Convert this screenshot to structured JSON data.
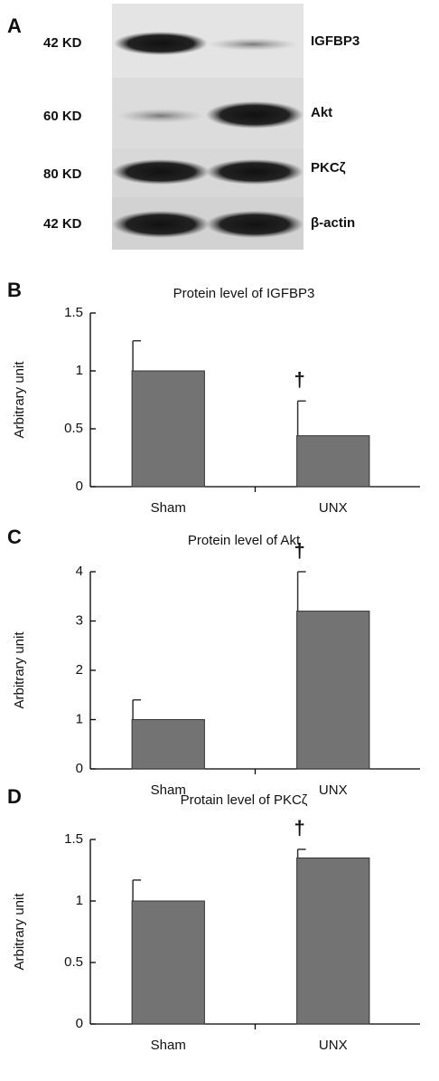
{
  "blot": {
    "panel_label": "A",
    "size_labels": [
      "42 KD",
      "60 KD",
      "80 KD",
      "42 KD"
    ],
    "protein_labels": [
      "IGFBP3",
      "Akt",
      "PKCζ",
      "β-actin"
    ]
  },
  "chart_data": [
    {
      "type": "bar",
      "panel_label": "B",
      "title": "Protein level of IGFBP3",
      "y_label": "Arbitrary unit",
      "categories": [
        "Sham",
        "UNX"
      ],
      "values": [
        1.0,
        0.44
      ],
      "errors": [
        0.26,
        0.3
      ],
      "annotations": [
        null,
        "†"
      ],
      "color": "#737373",
      "ylim": [
        0,
        1.5
      ],
      "yticks": [
        0,
        0.5,
        1,
        1.5
      ]
    },
    {
      "type": "bar",
      "panel_label": "C",
      "title": "Protein level of Akt",
      "y_label": "Arbitrary unit",
      "categories": [
        "Sham",
        "UNX"
      ],
      "values": [
        1.0,
        3.2
      ],
      "errors": [
        0.4,
        0.8
      ],
      "annotations": [
        null,
        "†"
      ],
      "color": "#737373",
      "ylim": [
        0,
        4
      ],
      "yticks": [
        0,
        1,
        2,
        3,
        4
      ]
    },
    {
      "type": "bar",
      "panel_label": "D",
      "title": "Protain level of PKCζ",
      "y_label": "Arbitrary unit",
      "categories": [
        "Sham",
        "UNX"
      ],
      "values": [
        1.0,
        1.35
      ],
      "errors": [
        0.17,
        0.07
      ],
      "annotations": [
        null,
        "†"
      ],
      "color": "#737373",
      "ylim": [
        0,
        1.5
      ],
      "yticks": [
        0,
        0.5,
        1,
        1.5
      ]
    }
  ]
}
